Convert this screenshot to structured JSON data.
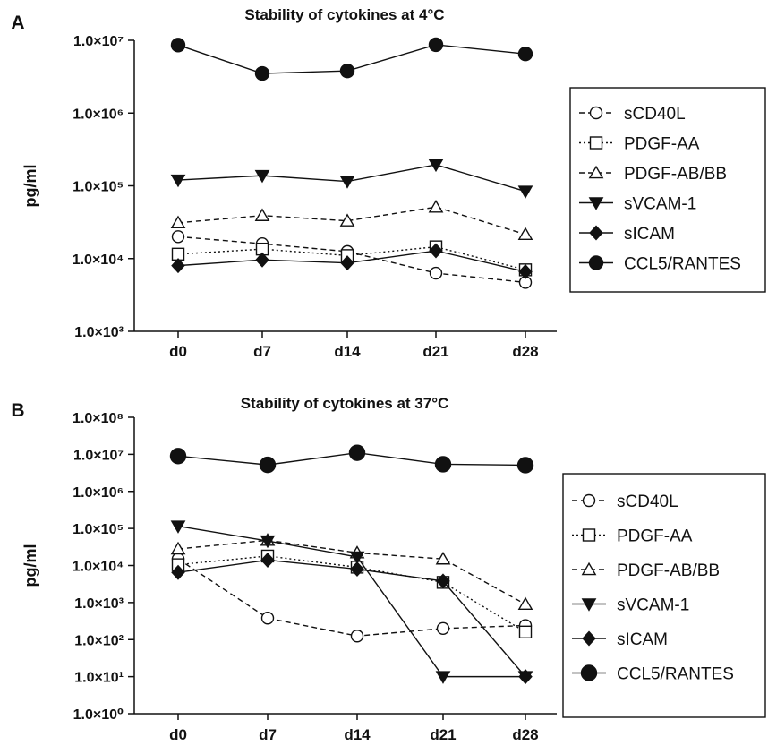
{
  "chart_data": [
    {
      "panel_label": "A",
      "type": "line",
      "title": "Stability of cytokines at 4°C",
      "xlabel": "",
      "ylabel": "pg/ml",
      "yscale": "log",
      "ylim": [
        1000,
        10000000
      ],
      "categories": [
        "d0",
        "d7",
        "d14",
        "d21",
        "d28"
      ],
      "ytick_labels": [
        "1.0×10³",
        "1.0×10⁴",
        "1.0×10⁵",
        "1.0×10⁶",
        "1.0×10⁷"
      ],
      "legend_position": "right",
      "series": [
        {
          "name": "sCD40L",
          "values": [
            20000,
            16000,
            12500,
            6300,
            4700
          ],
          "marker": "open-circle",
          "line": "dashed"
        },
        {
          "name": "PDGF-AA",
          "values": [
            11500,
            13500,
            11000,
            14500,
            7000
          ],
          "marker": "open-square",
          "line": "dotted"
        },
        {
          "name": "PDGF-AB/BB",
          "values": [
            31000,
            39000,
            33000,
            51000,
            21500
          ],
          "marker": "open-triangle-up",
          "line": "dashed"
        },
        {
          "name": "sVCAM-1",
          "values": [
            120000,
            138000,
            115000,
            195000,
            84000
          ],
          "marker": "filled-triangle-down",
          "line": "solid"
        },
        {
          "name": "sICAM",
          "values": [
            8000,
            9600,
            8700,
            12800,
            6600
          ],
          "marker": "filled-diamond",
          "line": "solid"
        },
        {
          "name": "CCL5/RANTES",
          "values": [
            8600000,
            3500000,
            3800000,
            8700000,
            6500000
          ],
          "marker": "filled-circle",
          "line": "solid"
        }
      ]
    },
    {
      "panel_label": "B",
      "type": "line",
      "title": "Stability of cytokines at 37°C",
      "xlabel": "",
      "ylabel": "pg/ml",
      "yscale": "log",
      "ylim": [
        1,
        100000000
      ],
      "categories": [
        "d0",
        "d7",
        "d14",
        "d21",
        "d28"
      ],
      "ytick_labels": [
        "1.0×10⁰",
        "1.0×10¹",
        "1.0×10²",
        "1.0×10³",
        "1.0×10⁴",
        "1.0×10⁵",
        "1.0×10⁶",
        "1.0×10⁷",
        "1.0×10⁸"
      ],
      "legend_position": "right",
      "series": [
        {
          "name": "sCD40L",
          "values": [
            15000,
            380,
            125,
            200,
            240
          ],
          "marker": "open-circle",
          "line": "dashed"
        },
        {
          "name": "PDGF-AA",
          "values": [
            10500,
            18000,
            9000,
            3500,
            160
          ],
          "marker": "open-square",
          "line": "dotted"
        },
        {
          "name": "PDGF-AB/BB",
          "values": [
            28000,
            48000,
            22000,
            15000,
            900
          ],
          "marker": "open-triangle-up",
          "line": "dashed"
        },
        {
          "name": "sVCAM-1",
          "values": [
            115000,
            46000,
            17000,
            10,
            10
          ],
          "marker": "filled-triangle-down",
          "line": "solid"
        },
        {
          "name": "sICAM",
          "values": [
            6500,
            14000,
            8000,
            3800,
            10
          ],
          "marker": "filled-diamond",
          "line": "solid"
        },
        {
          "name": "CCL5/RANTES",
          "values": [
            9000000,
            5200000,
            11000000,
            5400000,
            5100000
          ],
          "marker": "filled-circle",
          "line": "solid"
        }
      ]
    }
  ]
}
